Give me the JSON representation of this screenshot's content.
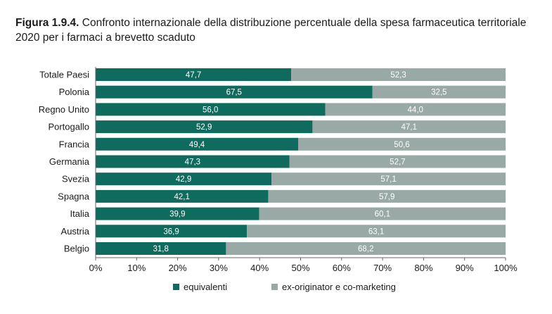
{
  "caption": {
    "figure_label": "Figura 1.9.4.",
    "text": "Confronto internazionale della distribuzione percentuale della spesa farmaceutica territoriale 2020 per i farmaci a brevetto scaduto"
  },
  "colors": {
    "equivalenti": "#0f6b5e",
    "ex_originator": "#98a9a6",
    "axis": "#666666"
  },
  "chart_data": {
    "type": "bar",
    "orientation": "horizontal",
    "stacked": true,
    "categories": [
      "Totale Paesi",
      "Polonia",
      "Regno Unito",
      "Portogallo",
      "Francia",
      "Germania",
      "Svezia",
      "Spagna",
      "Italia",
      "Austria",
      "Belgio"
    ],
    "series": [
      {
        "name": "equivalenti",
        "values": [
          47.7,
          67.5,
          56.0,
          52.9,
          49.4,
          47.3,
          42.9,
          42.1,
          39.9,
          36.9,
          31.8
        ]
      },
      {
        "name": "ex-originator e co-marketing",
        "values": [
          52.3,
          32.5,
          44.0,
          47.1,
          50.6,
          52.7,
          57.1,
          57.9,
          60.1,
          63.1,
          68.2
        ]
      }
    ],
    "xlim": [
      0,
      100
    ],
    "x_ticks": [
      "0%",
      "10%",
      "20%",
      "30%",
      "40%",
      "50%",
      "60%",
      "70%",
      "80%",
      "90%",
      "100%"
    ],
    "grid": false,
    "legend_position": "bottom"
  }
}
